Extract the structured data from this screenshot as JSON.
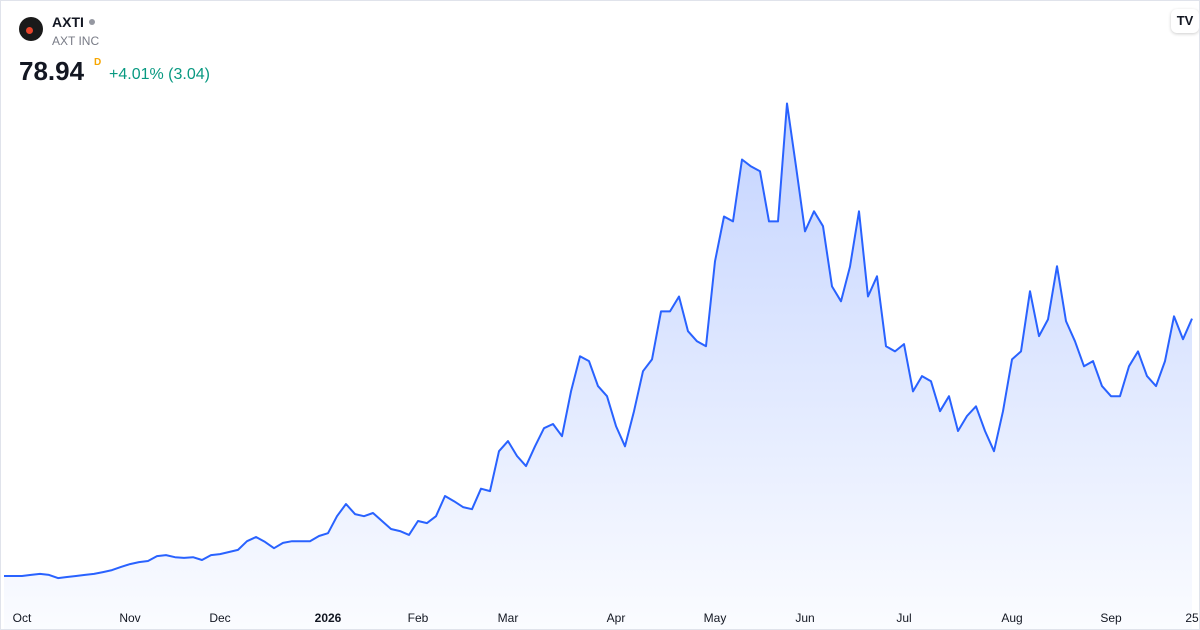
{
  "header": {
    "symbol": "AXTI",
    "name": "AXT INC",
    "price": "78.94",
    "interval": "D",
    "change": "+4.01% (3.04)"
  },
  "chart_data": {
    "type": "area",
    "color": "#2962ff",
    "ylim": [
      0,
      170
    ],
    "categories": [
      null,
      null,
      "Oct",
      null,
      null,
      null,
      null,
      null,
      null,
      null,
      null,
      null,
      null,
      null,
      "Nov",
      null,
      null,
      null,
      null,
      null,
      null,
      null,
      null,
      null,
      "Dec",
      null,
      null,
      null,
      null,
      null,
      null,
      null,
      null,
      null,
      null,
      null,
      "2026",
      null,
      null,
      null,
      null,
      null,
      null,
      null,
      null,
      null,
      "Feb",
      null,
      null,
      null,
      null,
      null,
      null,
      null,
      null,
      null,
      "Mar",
      null,
      null,
      null,
      null,
      null,
      null,
      null,
      null,
      null,
      null,
      null,
      "Apr",
      null,
      null,
      null,
      null,
      null,
      null,
      null,
      null,
      null,
      null,
      "May",
      null,
      null,
      null,
      null,
      null,
      null,
      null,
      null,
      null,
      "Jun",
      null,
      null,
      null,
      null,
      null,
      null,
      null,
      null,
      null,
      null,
      "Jul",
      null,
      null,
      null,
      null,
      null,
      null,
      null,
      null,
      null,
      null,
      null,
      "Aug",
      null,
      null,
      null,
      null,
      null,
      null,
      null,
      null,
      null,
      null,
      "Sep",
      null,
      null,
      null,
      null,
      null,
      null,
      null,
      null,
      "25"
    ],
    "values": [
      4.9,
      4.9,
      4.9,
      5.2,
      5.5,
      5.2,
      4.3,
      4.6,
      4.9,
      5.2,
      5.5,
      6.0,
      6.6,
      7.5,
      8.3,
      8.9,
      9.2,
      10.6,
      10.9,
      10.3,
      10.1,
      10.3,
      9.5,
      10.9,
      11.2,
      11.8,
      12.4,
      14.9,
      16.1,
      14.7,
      12.9,
      14.4,
      14.9,
      14.9,
      14.9,
      16.4,
      17.2,
      22.1,
      25.6,
      22.7,
      22.1,
      23.0,
      20.7,
      18.4,
      17.8,
      16.7,
      20.7,
      20.1,
      22.1,
      27.9,
      26.4,
      24.7,
      24.1,
      30.0,
      29.3,
      40.8,
      43.7,
      39.4,
      36.5,
      42.2,
      47.4,
      48.6,
      45.1,
      58.0,
      68.1,
      66.7,
      59.5,
      56.6,
      48.0,
      42.2,
      52.3,
      63.8,
      67.2,
      81.0,
      81.0,
      85.3,
      75.3,
      72.4,
      71.0,
      95.4,
      108.3,
      106.9,
      124.7,
      122.7,
      121.3,
      106.9,
      106.9,
      140.8,
      122.7,
      104.0,
      109.8,
      105.5,
      88.2,
      83.9,
      93.9,
      109.8,
      85.3,
      91.1,
      71.0,
      69.5,
      71.6,
      58.0,
      62.4,
      60.9,
      52.3,
      56.6,
      46.6,
      50.9,
      53.7,
      46.6,
      40.8,
      52.3,
      67.2,
      69.5,
      86.8,
      73.9,
      78.7,
      94.0,
      78.2,
      72.4,
      65.2,
      66.7,
      59.5,
      56.6,
      56.6,
      65.2,
      69.5,
      62.4,
      59.5,
      66.7,
      79.6,
      73.0,
      78.94
    ]
  }
}
